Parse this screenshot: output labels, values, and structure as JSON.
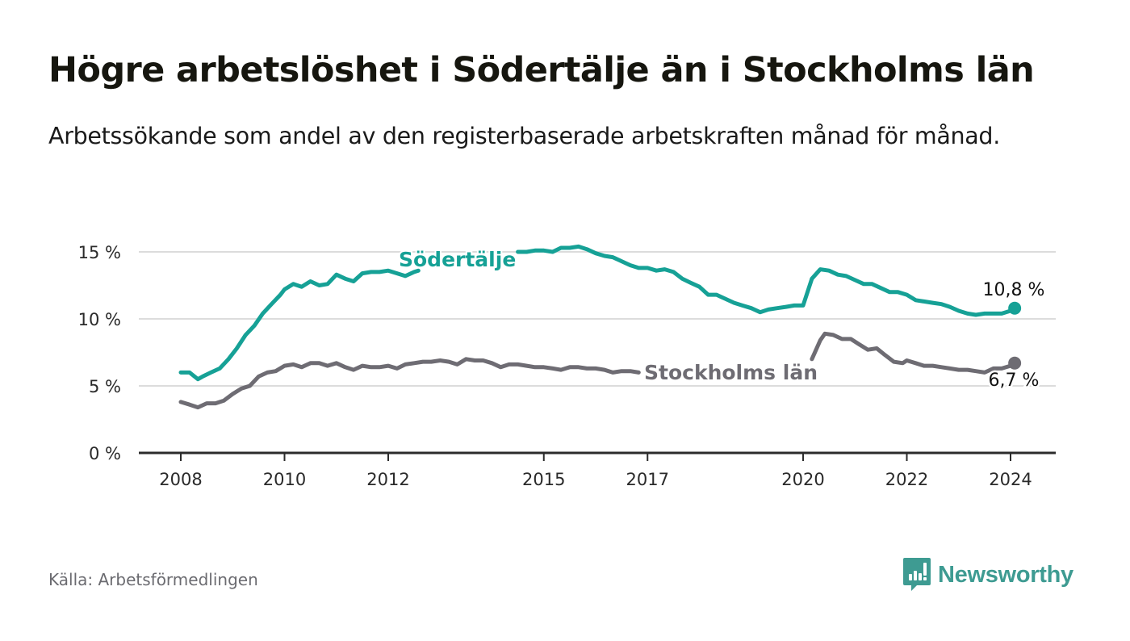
{
  "header": {
    "title": "Högre arbetslöshet i Södertälje än i Stockholms län",
    "subtitle": "Arbetssökande som andel av den registerbaserade arbetskraften månad för månad."
  },
  "footer": {
    "source": "Källa: Arbetsförmedlingen",
    "brand": "Newsworthy",
    "brand_icon": "newsworthy-chart-bubble-icon"
  },
  "colors": {
    "sodertalje": "#16a196",
    "stockholm": "#6e6c73",
    "grid": "#dcdcdc",
    "axis": "#2b2b2b"
  },
  "chart_data": {
    "type": "line",
    "title": "Högre arbetslöshet i Södertälje än i Stockholms län",
    "subtitle": "Arbetssökande som andel av den registerbaserade arbetskraften månad för månad.",
    "xlabel": "",
    "ylabel": "",
    "xlim": [
      2007.3,
      2025.0
    ],
    "ylim": [
      0,
      15
    ],
    "x_ticks": [
      2008,
      2010,
      2012,
      2015,
      2017,
      2020,
      2022,
      2024
    ],
    "x_tick_labels": [
      "2008",
      "2010",
      "2012",
      "2015",
      "2017",
      "2020",
      "2022",
      "2024"
    ],
    "y_ticks": [
      0,
      5,
      10,
      15
    ],
    "y_tick_labels": [
      "0 %",
      "5 %",
      "10 %",
      "15 %"
    ],
    "grid": true,
    "legend": "inline labels",
    "series": [
      {
        "name": "Södertälje",
        "label_position": "inline above line near 2013",
        "end_label": "10,8 %",
        "end_value": 10.8,
        "segments": [
          {
            "x": [
              2008.0,
              2008.17,
              2008.33,
              2008.42,
              2008.58,
              2008.75,
              2008.92,
              2009.08,
              2009.25,
              2009.42,
              2009.58,
              2009.75,
              2009.92,
              2010.0,
              2010.17,
              2010.33,
              2010.5,
              2010.67,
              2010.83,
              2011.0,
              2011.17,
              2011.33,
              2011.5,
              2011.67,
              2011.83,
              2012.0,
              2012.17,
              2012.33,
              2012.5,
              2012.58
            ],
            "y": [
              6.0,
              6.0,
              5.5,
              5.7,
              6.0,
              6.3,
              7.0,
              7.8,
              8.8,
              9.5,
              10.4,
              11.1,
              11.8,
              12.2,
              12.6,
              12.4,
              12.8,
              12.5,
              12.6,
              13.3,
              13.0,
              12.8,
              13.4,
              13.5,
              13.5,
              13.6,
              13.4,
              13.2,
              13.5,
              13.6
            ]
          },
          {
            "x": [
              2014.5,
              2014.67,
              2014.83,
              2015.0,
              2015.17,
              2015.33,
              2015.5,
              2015.67,
              2015.83,
              2016.0,
              2016.17,
              2016.33,
              2016.5,
              2016.67,
              2016.83,
              2017.0,
              2017.17,
              2017.33,
              2017.5,
              2017.67,
              2017.83,
              2018.0,
              2018.17,
              2018.33,
              2018.5,
              2018.67,
              2018.83,
              2019.0,
              2019.17,
              2019.33,
              2019.5,
              2019.67,
              2019.83,
              2020.0,
              2020.17,
              2020.33,
              2020.5,
              2020.67,
              2020.83,
              2021.0,
              2021.17,
              2021.33,
              2021.5,
              2021.67,
              2021.83,
              2022.0,
              2022.17,
              2022.33,
              2022.5,
              2022.67,
              2022.83,
              2023.0,
              2023.17,
              2023.33,
              2023.5,
              2023.67,
              2023.83,
              2024.0,
              2024.08
            ],
            "y": [
              15.0,
              15.0,
              15.1,
              15.1,
              15.0,
              15.3,
              15.3,
              15.4,
              15.2,
              14.9,
              14.7,
              14.6,
              14.3,
              14.0,
              13.8,
              13.8,
              13.6,
              13.7,
              13.5,
              13.0,
              12.7,
              12.4,
              11.8,
              11.8,
              11.5,
              11.2,
              11.0,
              10.8,
              10.5,
              10.7,
              10.8,
              10.9,
              11.0,
              11.0,
              13.0,
              13.7,
              13.6,
              13.3,
              13.2,
              12.9,
              12.6,
              12.6,
              12.3,
              12.0,
              12.0,
              11.8,
              11.4,
              11.3,
              11.2,
              11.1,
              10.9,
              10.6,
              10.4,
              10.3,
              10.4,
              10.4,
              10.4,
              10.6,
              10.8
            ]
          }
        ]
      },
      {
        "name": "Stockholms län",
        "label_position": "inline right of line near 2017",
        "end_label": "6,7 %",
        "end_value": 6.7,
        "segments": [
          {
            "x": [
              2008.0,
              2008.17,
              2008.33,
              2008.5,
              2008.67,
              2008.83,
              2009.0,
              2009.17,
              2009.33,
              2009.5,
              2009.67,
              2009.83,
              2010.0,
              2010.17,
              2010.33,
              2010.5,
              2010.67,
              2010.83,
              2011.0,
              2011.17,
              2011.33,
              2011.5,
              2011.67,
              2011.83,
              2012.0,
              2012.17,
              2012.33,
              2012.5,
              2012.67,
              2012.83,
              2013.0,
              2013.17,
              2013.33,
              2013.5,
              2013.67,
              2013.83,
              2014.0,
              2014.17,
              2014.33,
              2014.5,
              2014.67,
              2014.83,
              2015.0,
              2015.17,
              2015.33,
              2015.5,
              2015.67,
              2015.83,
              2016.0,
              2016.17,
              2016.33,
              2016.5,
              2016.67,
              2016.83
            ],
            "y": [
              3.8,
              3.6,
              3.4,
              3.7,
              3.7,
              3.9,
              4.4,
              4.8,
              5.0,
              5.7,
              6.0,
              6.1,
              6.5,
              6.6,
              6.4,
              6.7,
              6.7,
              6.5,
              6.7,
              6.4,
              6.2,
              6.5,
              6.4,
              6.4,
              6.5,
              6.3,
              6.6,
              6.7,
              6.8,
              6.8,
              6.9,
              6.8,
              6.6,
              7.0,
              6.9,
              6.9,
              6.7,
              6.4,
              6.6,
              6.6,
              6.5,
              6.4,
              6.4,
              6.3,
              6.2,
              6.4,
              6.4,
              6.3,
              6.3,
              6.2,
              6.0,
              6.1,
              6.1,
              6.0
            ]
          },
          {
            "x": [
              2020.17,
              2020.33,
              2020.42,
              2020.58,
              2020.75,
              2020.92,
              2021.08,
              2021.25,
              2021.42,
              2021.58,
              2021.75,
              2021.92,
              2022.0,
              2022.17,
              2022.33,
              2022.5,
              2022.67,
              2022.83,
              2023.0,
              2023.17,
              2023.33,
              2023.5,
              2023.67,
              2023.83,
              2024.0,
              2024.08
            ],
            "y": [
              7.0,
              8.4,
              8.9,
              8.8,
              8.5,
              8.5,
              8.1,
              7.7,
              7.8,
              7.3,
              6.8,
              6.7,
              6.9,
              6.7,
              6.5,
              6.5,
              6.4,
              6.3,
              6.2,
              6.2,
              6.1,
              6.0,
              6.3,
              6.3,
              6.5,
              6.7
            ]
          }
        ]
      }
    ]
  }
}
